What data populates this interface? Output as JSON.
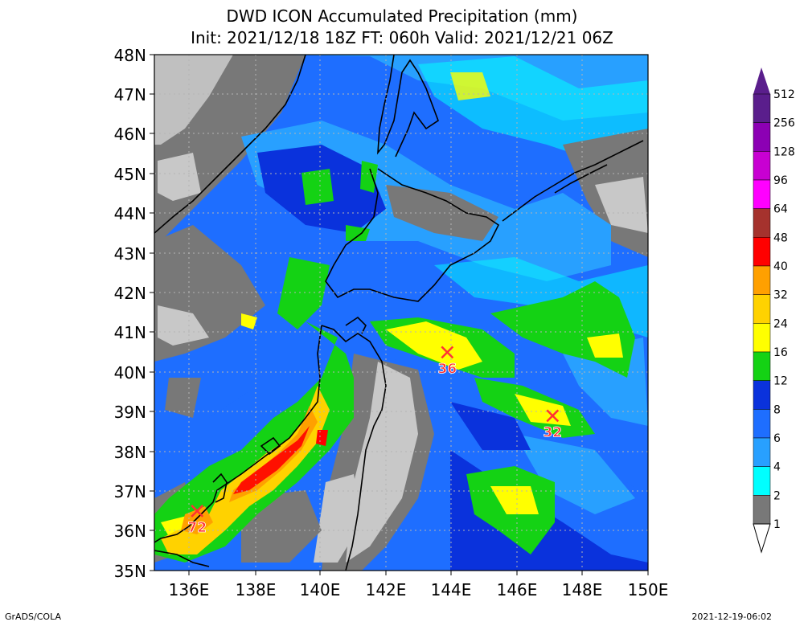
{
  "title": "DWD ICON Accumulated Precipitation (mm)",
  "subtitle": "Init: 2021/12/18 18Z  FT: 060h  Valid: 2021/12/21 06Z",
  "lat_labels": [
    "48N",
    "47N",
    "46N",
    "45N",
    "44N",
    "43N",
    "42N",
    "41N",
    "40N",
    "39N",
    "38N",
    "37N",
    "36N",
    "35N"
  ],
  "lon_labels": [
    "136E",
    "138E",
    "140E",
    "142E",
    "144E",
    "146E",
    "148E",
    "150E"
  ],
  "legend": {
    "levels": [
      "512",
      "256",
      "128",
      "96",
      "64",
      "48",
      "40",
      "32",
      "24",
      "16",
      "12",
      "8",
      "6",
      "4",
      "2",
      "1"
    ],
    "colors": [
      "#5a1e8c",
      "#8c00b4",
      "#c800d2",
      "#ff00ff",
      "#a5322d",
      "#ff0000",
      "#ffa000",
      "#ffd200",
      "#ffff00",
      "#14d214",
      "#0a32dc",
      "#1e6eff",
      "#28a0ff",
      "#00ffff",
      "#787878",
      "#c8c8c8"
    ]
  },
  "markers": [
    {
      "label": "36",
      "lon": 143.9,
      "lat": 40.5
    },
    {
      "label": "32",
      "lon": 147.1,
      "lat": 38.9
    },
    {
      "label": "72",
      "lon": 136.3,
      "lat": 36.5
    }
  ],
  "footer_left": "GrADS/COLA",
  "footer_right": "2021-12-19-06:02"
}
